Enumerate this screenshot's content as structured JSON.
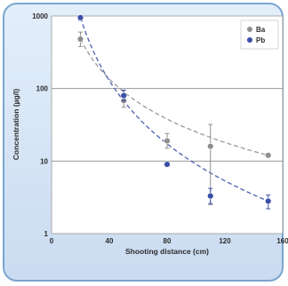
{
  "chart_data": {
    "type": "scatter",
    "xlabel": "Shooting distance (cm)",
    "ylabel": "Concentration (µg/l)",
    "xlim": [
      0,
      160
    ],
    "ylim": [
      1,
      1000
    ],
    "y_scale": "log",
    "x_ticks": [
      0,
      40,
      80,
      120,
      160
    ],
    "x_tick_labels": [
      "0",
      "40",
      "80",
      "120",
      "160"
    ],
    "y_ticks": [
      1,
      10,
      100,
      1000
    ],
    "y_tick_labels": [
      "1",
      "10",
      "100",
      "1000"
    ],
    "grid": "horizontal lines at 10 and 100",
    "legend_position": "top-right",
    "series": [
      {
        "name": "Ba",
        "color": "#8f8f8f",
        "x": [
          20,
          50,
          80,
          110,
          150
        ],
        "y": [
          480,
          68,
          19,
          16,
          12
        ],
        "y_err_low": [
          380,
          55,
          15,
          2.5,
          12
        ],
        "y_err_high": [
          600,
          85,
          24,
          32,
          12
        ],
        "trend": "dashed power-law fit"
      },
      {
        "name": "Pb",
        "color": "#3b4fa8",
        "x": [
          20,
          50,
          80,
          110,
          150
        ],
        "y": [
          950,
          80,
          9,
          3.3,
          2.8
        ],
        "y_err_low": [
          870,
          68,
          9,
          2.6,
          2.2
        ],
        "y_err_high": [
          1000,
          95,
          9,
          4.2,
          3.4
        ],
        "trend": "dashed power-law fit"
      }
    ]
  }
}
